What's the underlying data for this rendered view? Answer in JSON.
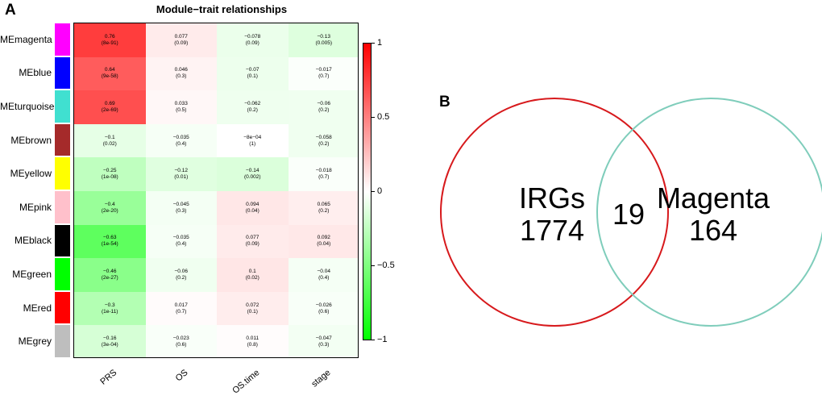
{
  "panel_a_letter": "A",
  "panel_b_letter": "B",
  "chart_data": [
    {
      "type": "heatmap",
      "title": "Module−trait relationships",
      "columns": [
        "PRS",
        "OS",
        "OS.time",
        "stage"
      ],
      "rows": [
        {
          "label": "MEmagenta",
          "color": "#ff00ff",
          "values": [
            0.76,
            0.077,
            -0.078,
            -0.13
          ],
          "pvalues": [
            "(8e-91)",
            "(0.09)",
            "(0.09)",
            "(0.005)"
          ]
        },
        {
          "label": "MEblue",
          "color": "#0000ff",
          "values": [
            0.64,
            0.046,
            -0.07,
            -0.017
          ],
          "pvalues": [
            "(9e-58)",
            "(0.3)",
            "(0.1)",
            "(0.7)"
          ]
        },
        {
          "label": "MEturquoise",
          "color": "#40e0d0",
          "values": [
            0.69,
            0.033,
            -0.062,
            -0.06
          ],
          "pvalues": [
            "(2e-69)",
            "(0.5)",
            "(0.2)",
            "(0.2)"
          ]
        },
        {
          "label": "MEbrown",
          "color": "#a52a2a",
          "values": [
            -0.1,
            -0.035,
            -0.0008,
            -0.058
          ],
          "pvalues": [
            "(0.02)",
            "(0.4)",
            "(1)",
            "(0.2)"
          ]
        },
        {
          "label": "MEyellow",
          "color": "#ffff00",
          "values": [
            -0.25,
            -0.12,
            -0.14,
            -0.018
          ],
          "pvalues": [
            "(1e-08)",
            "(0.01)",
            "(0.002)",
            "(0.7)"
          ]
        },
        {
          "label": "MEpink",
          "color": "#ffc0cb",
          "values": [
            -0.4,
            -0.045,
            0.094,
            0.065
          ],
          "pvalues": [
            "(2e-20)",
            "(0.3)",
            "(0.04)",
            "(0.2)"
          ]
        },
        {
          "label": "MEblack",
          "color": "#000000",
          "values": [
            -0.63,
            -0.035,
            0.077,
            0.092
          ],
          "pvalues": [
            "(1e-54)",
            "(0.4)",
            "(0.09)",
            "(0.04)"
          ]
        },
        {
          "label": "MEgreen",
          "color": "#00ff00",
          "values": [
            -0.46,
            -0.06,
            0.1,
            -0.04
          ],
          "pvalues": [
            "(2e-27)",
            "(0.2)",
            "(0.02)",
            "(0.4)"
          ]
        },
        {
          "label": "MEred",
          "color": "#ff0000",
          "values": [
            -0.3,
            0.017,
            0.072,
            -0.026
          ],
          "pvalues": [
            "(1e-11)",
            "(0.7)",
            "(0.1)",
            "(0.6)"
          ]
        },
        {
          "label": "MEgrey",
          "color": "#bebebe",
          "values": [
            -0.16,
            -0.023,
            0.011,
            -0.047
          ],
          "pvalues": [
            "(3e-04)",
            "(0.6)",
            "(0.8)",
            "(0.3)"
          ]
        }
      ],
      "value_labels": [
        [
          "0.76",
          "0.077",
          "−0.078",
          "−0.13"
        ],
        [
          "0.64",
          "0.046",
          "−0.07",
          "−0.017"
        ],
        [
          "0.69",
          "0.033",
          "−0.062",
          "−0.06"
        ],
        [
          "−0.1",
          "−0.035",
          "−8e−04",
          "−0.058"
        ],
        [
          "−0.25",
          "−0.12",
          "−0.14",
          "−0.018"
        ],
        [
          "−0.4",
          "−0.045",
          "0.094",
          "0.065"
        ],
        [
          "−0.63",
          "−0.035",
          "0.077",
          "0.092"
        ],
        [
          "−0.46",
          "−0.06",
          "0.1",
          "−0.04"
        ],
        [
          "−0.3",
          "0.017",
          "0.072",
          "−0.026"
        ],
        [
          "−0.16",
          "−0.023",
          "0.011",
          "−0.047"
        ]
      ],
      "color_scale": {
        "min": -1,
        "max": 1,
        "low_color": "#00ff00",
        "mid_color": "#ffffff",
        "high_color": "#ff0000",
        "ticks": [
          1,
          0.5,
          0,
          -0.5,
          -1
        ],
        "tick_labels": [
          "1",
          "0.5",
          "0",
          "−0.5",
          "−1"
        ]
      }
    },
    {
      "type": "venn",
      "sets": [
        {
          "name": "IRGs",
          "only_count": 1774,
          "color": "#d7191c"
        },
        {
          "name": "Magenta",
          "only_count": 164,
          "color": "#7fcdbb"
        }
      ],
      "intersection": 19,
      "labels": {
        "left_name": "IRGs",
        "left_count": "1774",
        "overlap": "19",
        "right_name": "Magenta",
        "right_count": "164"
      }
    }
  ]
}
